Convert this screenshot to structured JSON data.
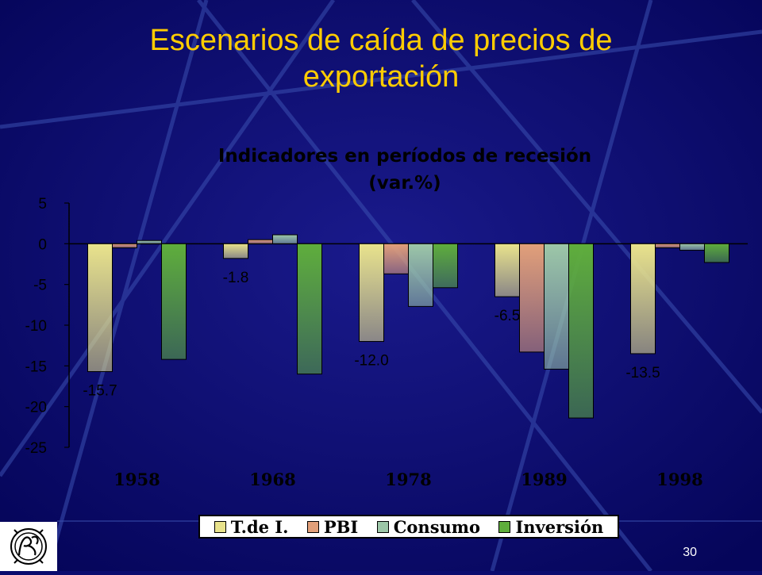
{
  "slide": {
    "title_line1": "Escenarios de caída de precios de",
    "title_line2": "exportación",
    "page_number": "30",
    "logo_icon": "bcrp-monogram-logo",
    "colors": {
      "background": "#0b0b6e",
      "title": "#ffcc00"
    }
  },
  "chart_data": {
    "type": "bar",
    "title_line1": "Indicadores en períodos de recesión",
    "title_line2": "(var.%)",
    "categories": [
      "1958",
      "1968",
      "1978",
      "1989",
      "1998"
    ],
    "series": [
      {
        "name": "T.de I.",
        "color": "#e9e38c",
        "values": [
          -15.7,
          -1.8,
          -12.0,
          -6.5,
          -13.5
        ]
      },
      {
        "name": "PBI",
        "color": "#e2a07a",
        "values": [
          -0.5,
          0.5,
          -3.7,
          -13.3,
          -0.5
        ]
      },
      {
        "name": "Consumo",
        "color": "#9dc7a8",
        "values": [
          0.4,
          1.1,
          -7.7,
          -15.4,
          -0.8
        ]
      },
      {
        "name": "Inversión",
        "color": "#5fae3c",
        "values": [
          -14.2,
          -16.0,
          -5.4,
          -21.4,
          -2.3
        ]
      }
    ],
    "data_labels": [
      {
        "series": 0,
        "category": 0,
        "text": "-15.7"
      },
      {
        "series": 0,
        "category": 1,
        "text": "-1.8"
      },
      {
        "series": 0,
        "category": 2,
        "text": "-12.0"
      },
      {
        "series": 0,
        "category": 3,
        "text": "-6.5"
      },
      {
        "series": 0,
        "category": 4,
        "text": "-13.5"
      }
    ],
    "yticks": [
      "5",
      "0",
      "-5",
      "-10",
      "-15",
      "-20",
      "-25"
    ],
    "ylim": [
      -25,
      5
    ],
    "grid": false,
    "legend_position": "bottom"
  }
}
